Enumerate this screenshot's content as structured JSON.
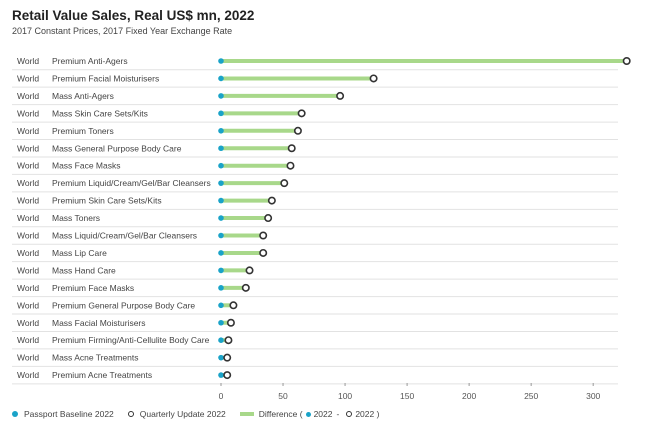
{
  "chart_data": {
    "type": "dumbbell",
    "title": "Retail Value Sales, Real US$ mn, 2022",
    "subtitle": "2017 Constant Prices, 2017 Fixed Year Exchange Rate",
    "xlim": [
      0,
      320
    ],
    "xticks": [
      0,
      50,
      100,
      150,
      200,
      250,
      300
    ],
    "rows": [
      {
        "geo": "World",
        "category": "Premium Anti-Agers",
        "baseline": 0,
        "update": 327
      },
      {
        "geo": "World",
        "category": "Premium Facial Moisturisers",
        "baseline": 0,
        "update": 123
      },
      {
        "geo": "World",
        "category": "Mass Anti-Agers",
        "baseline": 0,
        "update": 96
      },
      {
        "geo": "World",
        "category": "Mass Skin Care Sets/Kits",
        "baseline": 0,
        "update": 65
      },
      {
        "geo": "World",
        "category": "Premium Toners",
        "baseline": 0,
        "update": 62
      },
      {
        "geo": "World",
        "category": "Mass General Purpose Body Care",
        "baseline": 0,
        "update": 57
      },
      {
        "geo": "World",
        "category": "Mass Face Masks",
        "baseline": 0,
        "update": 56
      },
      {
        "geo": "World",
        "category": "Premium Liquid/Cream/Gel/Bar Cleansers",
        "baseline": 0,
        "update": 51
      },
      {
        "geo": "World",
        "category": "Premium Skin Care Sets/Kits",
        "baseline": 0,
        "update": 41
      },
      {
        "geo": "World",
        "category": "Mass Toners",
        "baseline": 0,
        "update": 38
      },
      {
        "geo": "World",
        "category": "Mass Liquid/Cream/Gel/Bar Cleansers",
        "baseline": 0,
        "update": 34
      },
      {
        "geo": "World",
        "category": "Mass Lip Care",
        "baseline": 0,
        "update": 34
      },
      {
        "geo": "World",
        "category": "Mass Hand Care",
        "baseline": 0,
        "update": 23
      },
      {
        "geo": "World",
        "category": "Premium Face Masks",
        "baseline": 0,
        "update": 20
      },
      {
        "geo": "World",
        "category": "Premium General Purpose Body Care",
        "baseline": 0,
        "update": 10
      },
      {
        "geo": "World",
        "category": "Mass Facial Moisturisers",
        "baseline": 0,
        "update": 8
      },
      {
        "geo": "World",
        "category": "Premium Firming/Anti-Cellulite Body Care",
        "baseline": 0,
        "update": 6
      },
      {
        "geo": "World",
        "category": "Mass Acne Treatments",
        "baseline": 0,
        "update": 5
      },
      {
        "geo": "World",
        "category": "Premium Acne Treatments",
        "baseline": 0,
        "update": 5
      }
    ],
    "legend": {
      "baseline": "Passport Baseline 2022",
      "update": "Quarterly Update 2022",
      "difference": "Difference (",
      "diff_a": "2022",
      "diff_sep": "-",
      "diff_b": "2022 )"
    }
  },
  "colors": {
    "baseline": "#1aa3c8",
    "update_ring": "#333333",
    "difference": "#a8d88a",
    "grid": "#e2e2e2"
  }
}
